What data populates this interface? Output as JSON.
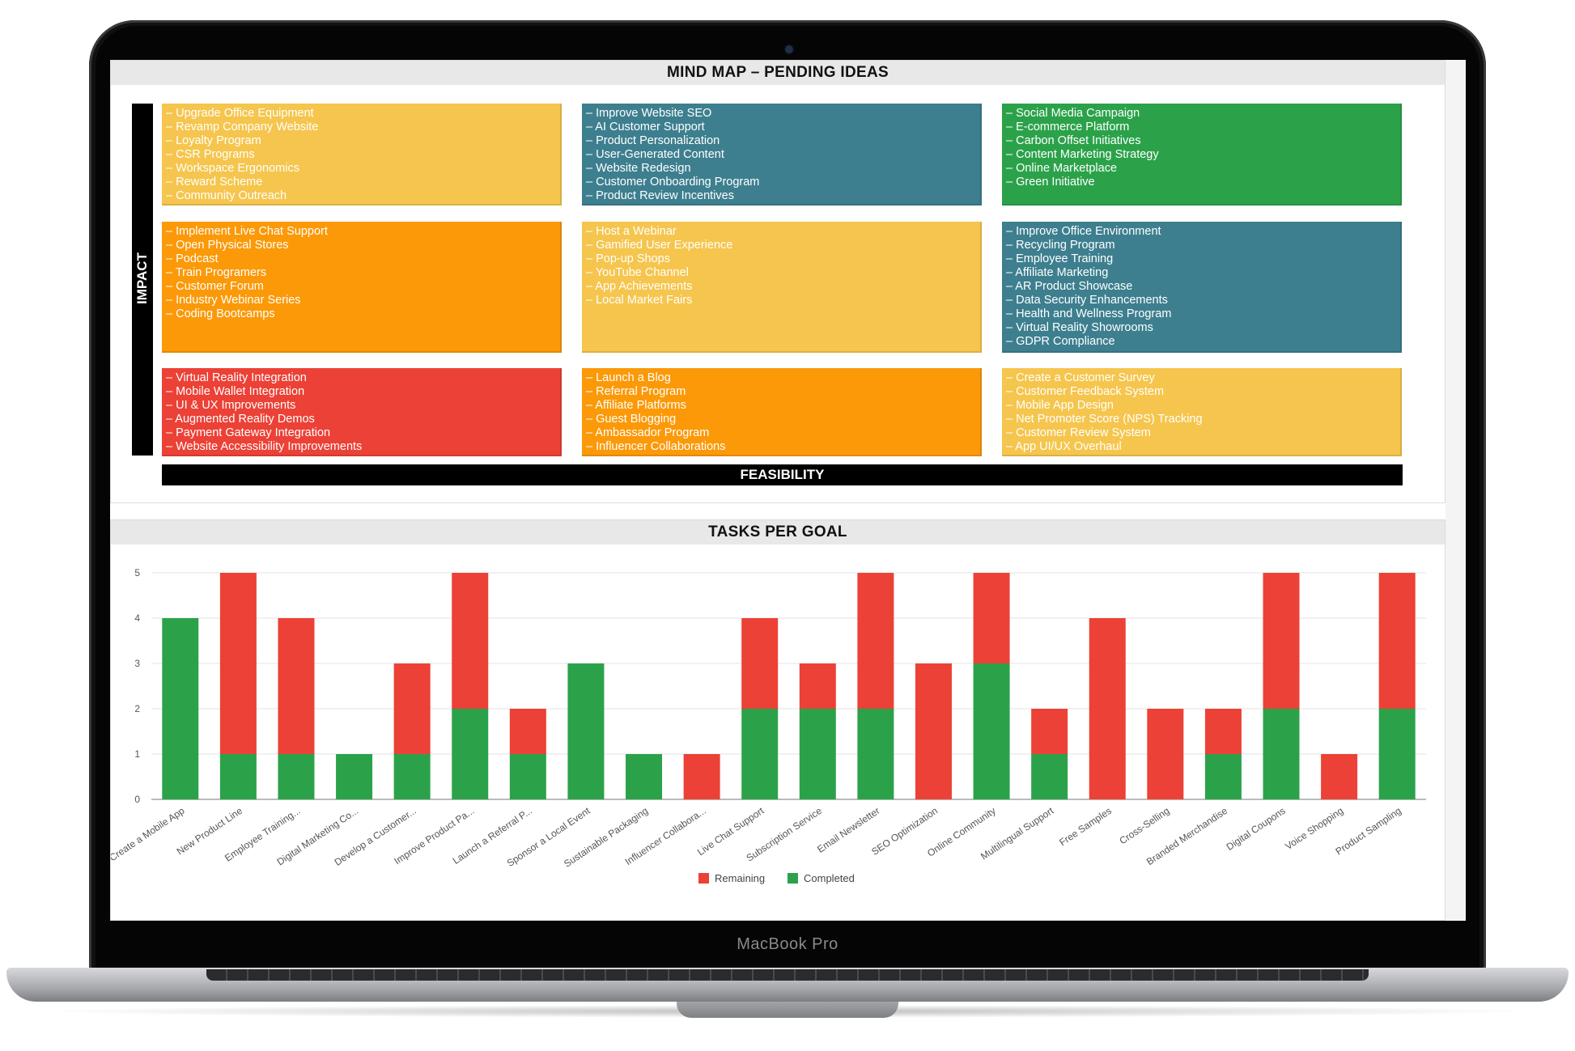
{
  "device": {
    "brand_label": "MacBook Pro"
  },
  "colors": {
    "yellow": "#f5c54d",
    "teal": "#3d7f8f",
    "green": "#2ba24a",
    "orange": "#fb9908",
    "red": "#ec4136",
    "remaining": "#ec4136",
    "completed": "#2ba24a"
  },
  "mind_map": {
    "title": "MIND MAP – PENDING IDEAS",
    "y_axis_label": "IMPACT",
    "x_axis_label": "FEASIBILITY",
    "cells": [
      {
        "color": "yellow",
        "items": [
          "Upgrade Office Equipment",
          "Revamp Company Website",
          "Loyalty Program",
          "CSR Programs",
          "Workspace Ergonomics",
          "Reward Scheme",
          "Community Outreach"
        ]
      },
      {
        "color": "teal",
        "items": [
          "Improve Website SEO",
          "AI Customer Support",
          "Product Personalization",
          "User-Generated Content",
          "Website Redesign",
          "Customer Onboarding Program",
          "Product Review Incentives"
        ]
      },
      {
        "color": "green",
        "items": [
          "Social Media Campaign",
          "E-commerce Platform",
          "Carbon Offset Initiatives",
          "Content Marketing Strategy",
          "Online Marketplace",
          "Green Initiative"
        ]
      },
      {
        "color": "orange",
        "items": [
          "Implement Live Chat Support",
          "Open Physical Stores",
          "Podcast",
          "Train Programers",
          "Customer Forum",
          "Industry Webinar Series",
          "Coding Bootcamps"
        ]
      },
      {
        "color": "yellow",
        "items": [
          "Host a Webinar",
          "Gamified User Experience",
          "Pop-up Shops",
          "YouTube Channel",
          "App Achievements",
          "Local Market Fairs"
        ]
      },
      {
        "color": "teal",
        "items": [
          "Improve Office Environment",
          "Recycling Program",
          "Employee Training",
          "Affiliate Marketing",
          "AR Product Showcase",
          "Data Security Enhancements",
          "Health and Wellness Program",
          "Virtual Reality Showrooms",
          "GDPR Compliance"
        ]
      },
      {
        "color": "red",
        "items": [
          "Virtual Reality Integration",
          "Mobile Wallet Integration",
          "UI & UX Improvements",
          "Augmented Reality Demos",
          "Payment Gateway Integration",
          "Website Accessibility Improvements"
        ]
      },
      {
        "color": "orange",
        "items": [
          "Launch a Blog",
          "Referral Program",
          "Affiliate Platforms",
          "Guest Blogging",
          "Ambassador Program",
          "Influencer Collaborations"
        ]
      },
      {
        "color": "yellow",
        "items": [
          "Create a Customer Survey",
          "Customer Feedback System",
          "Mobile App Design",
          "Net Promoter Score (NPS) Tracking",
          "Customer Review System",
          "App UI/UX Overhaul"
        ]
      }
    ]
  },
  "tasks_per_goal": {
    "title": "TASKS PER GOAL",
    "chart_data": {
      "type": "bar",
      "stacked": true,
      "categories": [
        "Create a Mobile App",
        "New Product Line",
        "Employee Training...",
        "Digital Marketing Co...",
        "Develop a Customer...",
        "Improve Product Pa...",
        "Launch a Referral P...",
        "Sponsor a Local Event",
        "Sustainable Packaging",
        "Influencer Collabora...",
        "Live Chat Support",
        "Subscription Service",
        "Email Newsletter",
        "SEO Optimization",
        "Online Community",
        "Multilingual Support",
        "Free Samples",
        "Cross-Selling",
        "Branded Merchandise",
        "Digital Coupons",
        "Voice Shopping",
        "Product Sampling"
      ],
      "series": [
        {
          "name": "Completed",
          "values": [
            4,
            1,
            1,
            1,
            1,
            2,
            1,
            3,
            1,
            0,
            2,
            2,
            2,
            0,
            3,
            1,
            0,
            0,
            1,
            2,
            0,
            2
          ]
        },
        {
          "name": "Remaining",
          "values": [
            0,
            4,
            3,
            0,
            2,
            3,
            1,
            0,
            0,
            1,
            2,
            1,
            3,
            3,
            2,
            1,
            4,
            2,
            1,
            3,
            1,
            3
          ]
        }
      ],
      "ylim": [
        0,
        5
      ],
      "yticks": [
        "0",
        "1",
        "2",
        "3",
        "4",
        "5"
      ],
      "legend": {
        "position": "bottom",
        "entries": [
          "Remaining",
          "Completed"
        ]
      },
      "grid": true
    }
  }
}
